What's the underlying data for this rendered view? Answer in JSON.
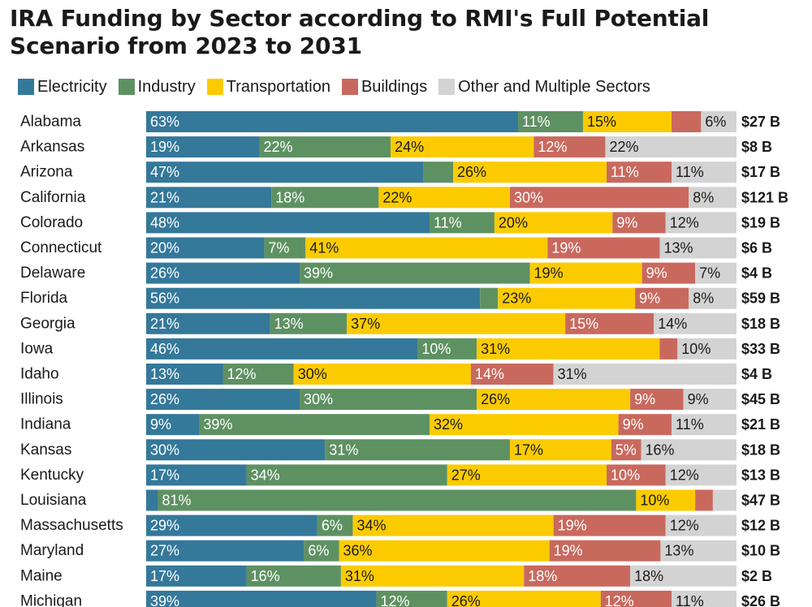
{
  "chart_data": {
    "type": "stacked-bar",
    "title": "IRA Funding by Sector according to RMI's Full Potential Scenario from 2023 to 2031",
    "series": [
      {
        "name": "Electricity",
        "color": "#34789a",
        "label_color": "#ffffff"
      },
      {
        "name": "Industry",
        "color": "#5e9162",
        "label_color": "#ffffff"
      },
      {
        "name": "Transportation",
        "color": "#fbcb00",
        "label_color": "#1a1a1a"
      },
      {
        "name": "Buildings",
        "color": "#c9695e",
        "label_color": "#ffffff"
      },
      {
        "name": "Other and Multiple Sectors",
        "color": "#d3d3d3",
        "label_color": "#1a1a1a"
      }
    ],
    "rows": [
      {
        "state": "Alabama",
        "values": [
          63,
          11,
          15,
          5,
          6
        ],
        "labels": [
          "63%",
          "11%",
          "15%",
          "",
          "6%"
        ],
        "total": "$27 B"
      },
      {
        "state": "Arkansas",
        "values": [
          19,
          22,
          24,
          12,
          22
        ],
        "labels": [
          "19%",
          "22%",
          "24%",
          "12%",
          "22%"
        ],
        "total": "$8 B"
      },
      {
        "state": "Arizona",
        "values": [
          47,
          5,
          26,
          11,
          11
        ],
        "labels": [
          "47%",
          "",
          "26%",
          "11%",
          "11%"
        ],
        "total": "$17 B"
      },
      {
        "state": "California",
        "values": [
          21,
          18,
          22,
          30,
          8
        ],
        "labels": [
          "21%",
          "18%",
          "22%",
          "30%",
          "8%"
        ],
        "total": "$121 B"
      },
      {
        "state": "Colorado",
        "values": [
          48,
          11,
          20,
          9,
          12
        ],
        "labels": [
          "48%",
          "11%",
          "20%",
          "9%",
          "12%"
        ],
        "total": "$19 B"
      },
      {
        "state": "Connecticut",
        "values": [
          20,
          7,
          41,
          19,
          13
        ],
        "labels": [
          "20%",
          "7%",
          "41%",
          "19%",
          "13%"
        ],
        "total": "$6 B"
      },
      {
        "state": "Delaware",
        "values": [
          26,
          39,
          19,
          9,
          7
        ],
        "labels": [
          "26%",
          "39%",
          "19%",
          "9%",
          "7%"
        ],
        "total": "$4 B"
      },
      {
        "state": "Florida",
        "values": [
          56,
          3,
          23,
          9,
          8
        ],
        "labels": [
          "56%",
          "",
          "23%",
          "9%",
          "8%"
        ],
        "total": "$59 B"
      },
      {
        "state": "Georgia",
        "values": [
          21,
          13,
          37,
          15,
          14
        ],
        "labels": [
          "21%",
          "13%",
          "37%",
          "15%",
          "14%"
        ],
        "total": "$18 B"
      },
      {
        "state": "Iowa",
        "values": [
          46,
          10,
          31,
          3,
          10
        ],
        "labels": [
          "46%",
          "10%",
          "31%",
          "",
          "10%"
        ],
        "total": "$33 B"
      },
      {
        "state": "Idaho",
        "values": [
          13,
          12,
          30,
          14,
          31
        ],
        "labels": [
          "13%",
          "12%",
          "30%",
          "14%",
          "31%"
        ],
        "total": "$4 B"
      },
      {
        "state": "Illinois",
        "values": [
          26,
          30,
          26,
          9,
          9
        ],
        "labels": [
          "26%",
          "30%",
          "26%",
          "9%",
          "9%"
        ],
        "total": "$45 B"
      },
      {
        "state": "Indiana",
        "values": [
          9,
          39,
          32,
          9,
          11
        ],
        "labels": [
          "9%",
          "39%",
          "32%",
          "9%",
          "11%"
        ],
        "total": "$21 B"
      },
      {
        "state": "Kansas",
        "values": [
          30,
          31,
          17,
          5,
          16
        ],
        "labels": [
          "30%",
          "31%",
          "17%",
          "5%",
          "16%"
        ],
        "total": "$18 B"
      },
      {
        "state": "Kentucky",
        "values": [
          17,
          34,
          27,
          10,
          12
        ],
        "labels": [
          "17%",
          "34%",
          "27%",
          "10%",
          "12%"
        ],
        "total": "$13 B"
      },
      {
        "state": "Louisiana",
        "values": [
          2,
          81,
          10,
          3,
          4
        ],
        "labels": [
          "",
          "81%",
          "10%",
          "",
          ""
        ],
        "total": "$47 B"
      },
      {
        "state": "Massachusetts",
        "values": [
          29,
          6,
          34,
          19,
          12
        ],
        "labels": [
          "29%",
          "6%",
          "34%",
          "19%",
          "12%"
        ],
        "total": "$12 B"
      },
      {
        "state": "Maryland",
        "values": [
          27,
          6,
          36,
          19,
          13
        ],
        "labels": [
          "27%",
          "6%",
          "36%",
          "19%",
          "13%"
        ],
        "total": "$10 B"
      },
      {
        "state": "Maine",
        "values": [
          17,
          16,
          31,
          18,
          18
        ],
        "labels": [
          "17%",
          "16%",
          "31%",
          "18%",
          "18%"
        ],
        "total": "$2 B"
      },
      {
        "state": "Michigan",
        "values": [
          39,
          12,
          26,
          12,
          11
        ],
        "labels": [
          "39%",
          "12%",
          "26%",
          "12%",
          "11%"
        ],
        "total": "$26 B"
      }
    ]
  }
}
